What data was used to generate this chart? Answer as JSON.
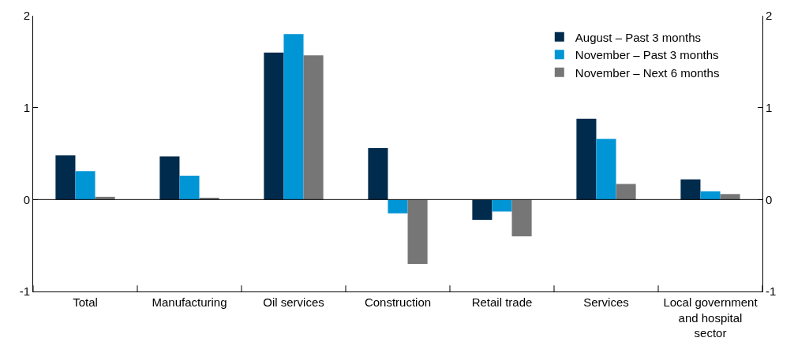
{
  "chart_data": {
    "type": "bar",
    "categories": [
      "Total",
      "Manufacturing",
      "Oil services",
      "Construction",
      "Retail trade",
      "Services",
      "Local government and hospital sector"
    ],
    "series": [
      {
        "name": "August – Past 3 months",
        "color": "#002b4c",
        "values": [
          0.48,
          0.47,
          1.6,
          0.56,
          -0.22,
          0.88,
          0.22
        ]
      },
      {
        "name": "November – Past 3 months",
        "color": "#0096d6",
        "values": [
          0.31,
          0.26,
          1.8,
          -0.15,
          -0.13,
          0.66,
          0.09
        ]
      },
      {
        "name": "November – Next 6 months",
        "color": "#767676",
        "values": [
          0.03,
          0.02,
          1.57,
          -0.7,
          -0.4,
          0.17,
          0.06
        ]
      }
    ],
    "ylim": [
      -1,
      2
    ],
    "yticks": [
      -1,
      0,
      1,
      2
    ],
    "y2lim": [
      -1,
      2
    ],
    "y2ticks": [
      -1,
      0,
      1,
      2
    ],
    "ref_lines": [
      {
        "axis": "y",
        "value": 0,
        "color": "#000000"
      }
    ],
    "legend": "top right"
  }
}
